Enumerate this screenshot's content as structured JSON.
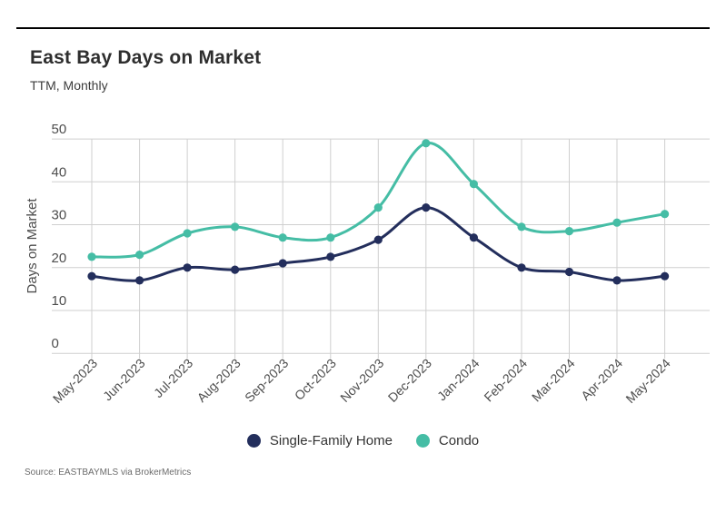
{
  "header": {
    "title": "East Bay Days on Market",
    "subtitle": "TTM, Monthly"
  },
  "footer": {
    "source": "Source:  EASTBAYMLS via BrokerMetrics"
  },
  "colors": {
    "single_family": "#232e5c",
    "condo": "#45bda5",
    "gridline": "#cfcfcf",
    "axis_text": "#4d4d4d",
    "top_rule": "#000000"
  },
  "chart_data": {
    "type": "line",
    "title": "East Bay Days on Market",
    "subtitle": "TTM, Monthly",
    "xlabel": "",
    "ylabel": "Days on Market",
    "categories": [
      "May-2023",
      "Jun-2023",
      "Jul-2023",
      "Aug-2023",
      "Sep-2023",
      "Oct-2023",
      "Nov-2023",
      "Dec-2023",
      "Jan-2024",
      "Feb-2024",
      "Mar-2024",
      "Apr-2024",
      "May-2024"
    ],
    "series": [
      {
        "name": "Single-Family Home",
        "color": "#232e5c",
        "values": [
          18,
          17,
          20,
          19.5,
          21,
          22.5,
          26.5,
          34,
          27,
          20,
          19,
          17,
          18
        ]
      },
      {
        "name": "Condo",
        "color": "#45bda5",
        "values": [
          22.5,
          23,
          28,
          29.5,
          27,
          27,
          34,
          49,
          39.5,
          29.5,
          28.5,
          30.5,
          32.5
        ]
      }
    ],
    "ylim": [
      0,
      50
    ],
    "yticks": [
      0,
      10,
      20,
      30,
      40,
      50
    ],
    "grid": true,
    "legend_position": "bottom",
    "source": "Source:  EASTBAYMLS via BrokerMetrics"
  }
}
